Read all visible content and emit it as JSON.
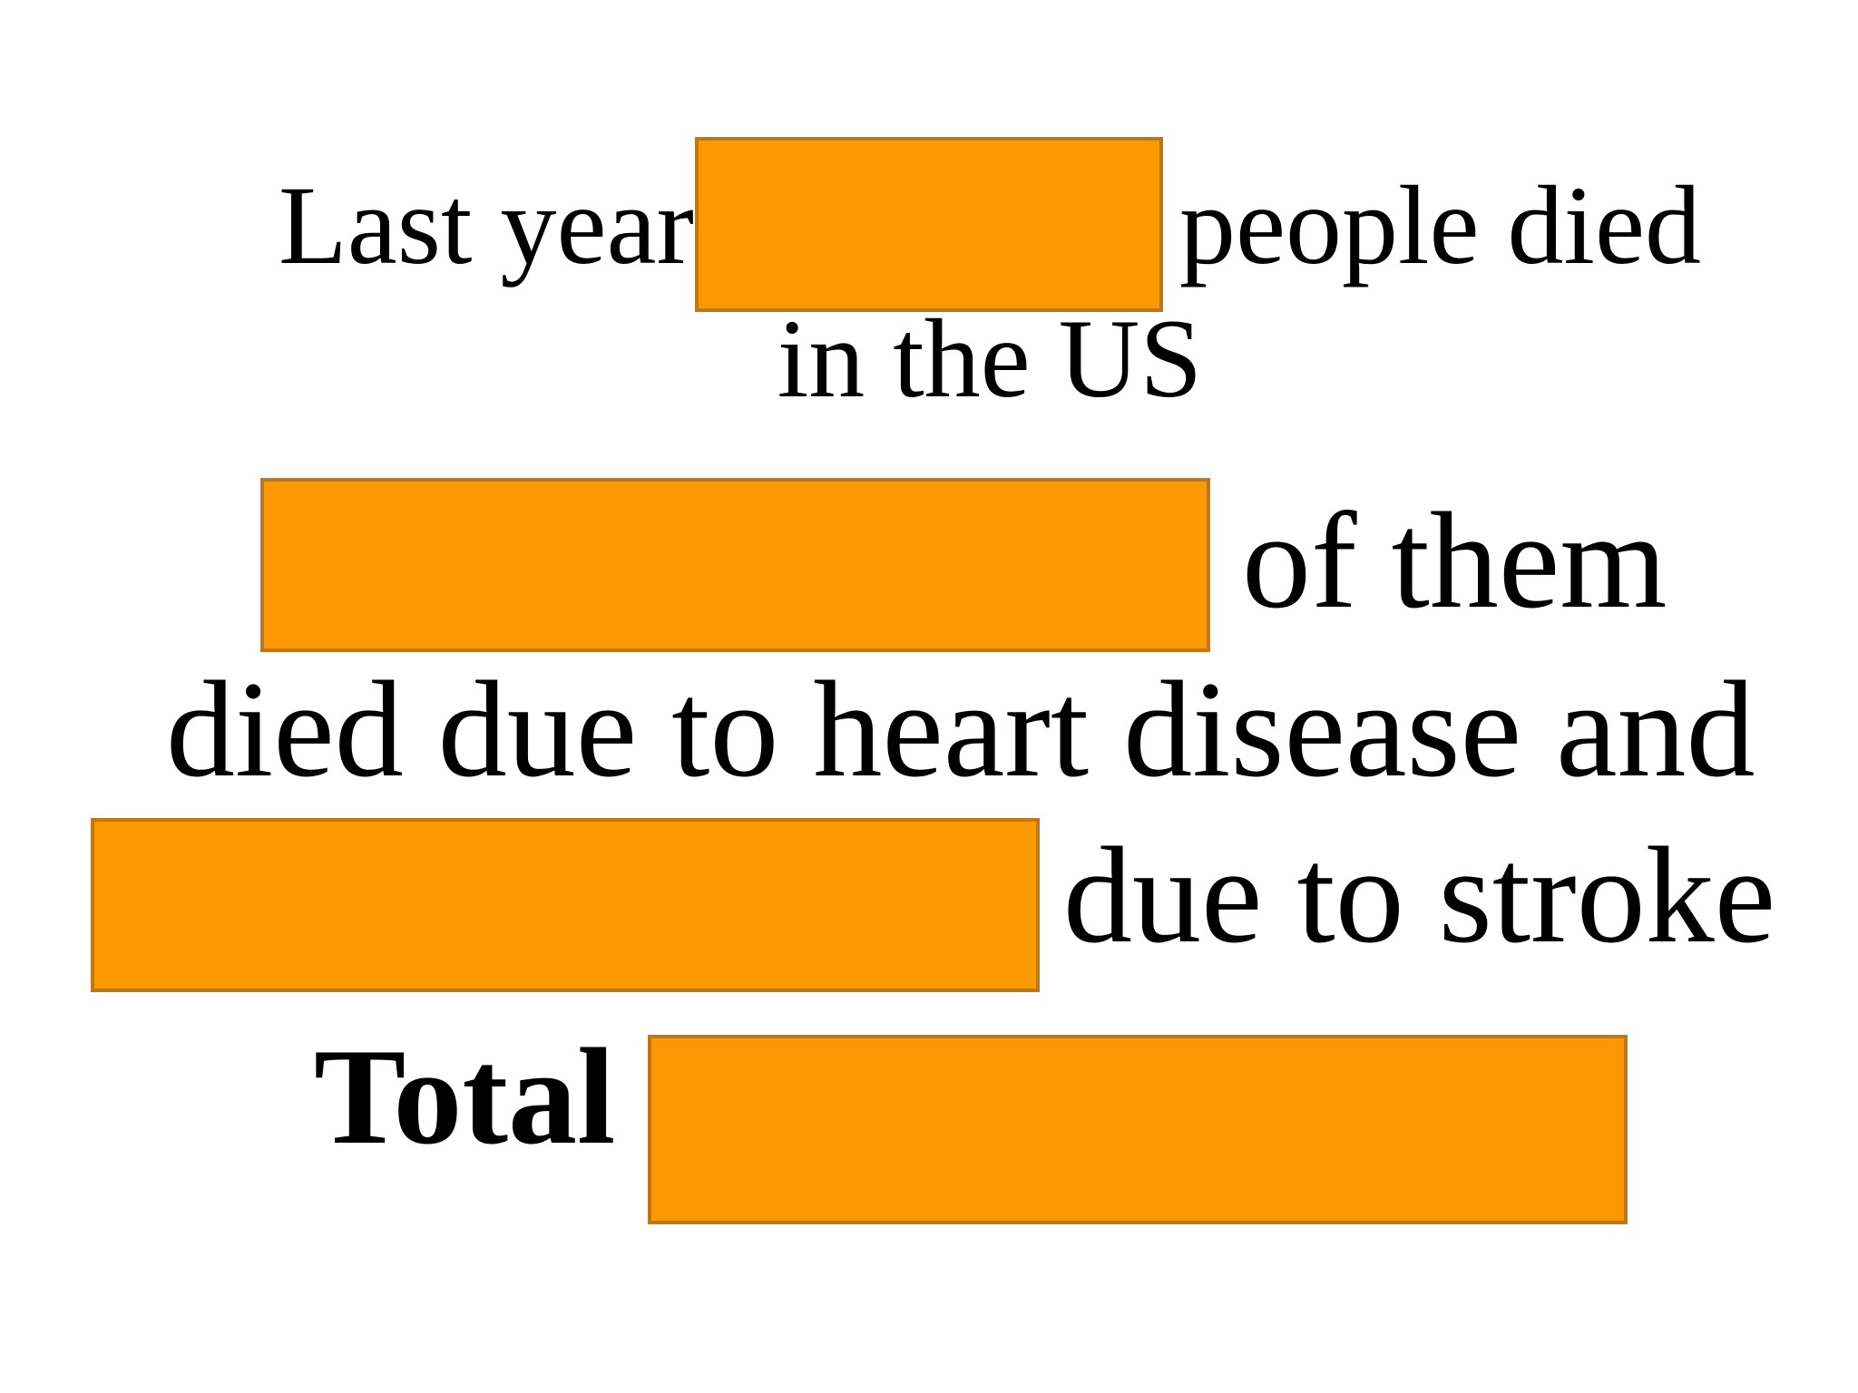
{
  "slide": {
    "line1": {
      "before": "Last year",
      "after": "people died",
      "continued": "in the US"
    },
    "line2": {
      "after": "of them"
    },
    "line3": {
      "text": "died due to heart disease and"
    },
    "line4": {
      "after": "due to stroke"
    },
    "line5": {
      "label": "Total"
    }
  }
}
